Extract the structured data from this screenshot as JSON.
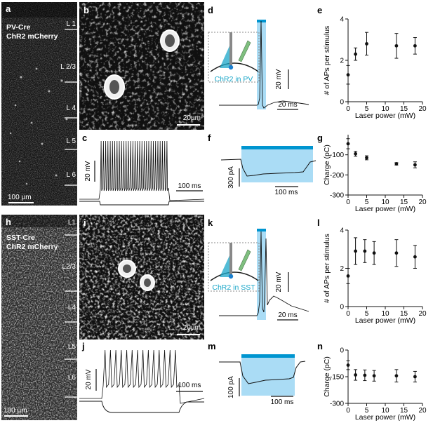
{
  "panels": {
    "a": {
      "letter": "a",
      "line1": "PV-Cre",
      "line2": "ChR2 mCherry",
      "scale": "100 µm",
      "layers": [
        "L 1",
        "L 2/3",
        "L 4",
        "L 5",
        "L 6"
      ]
    },
    "b": {
      "letter": "b",
      "scale": "20µm"
    },
    "c": {
      "letter": "c",
      "ybar": "20 mV",
      "xbar": "100 ms"
    },
    "d": {
      "letter": "d",
      "inset": "ChR2 in PV",
      "ybar": "20 mV",
      "xbar": "20 ms"
    },
    "f": {
      "letter": "f",
      "ybar": "300 pA",
      "xbar": "100 ms"
    },
    "h": {
      "letter": "h",
      "line1": "SST-Cre",
      "line2": "ChR2 mCherry",
      "scale": "100 µm",
      "layers": [
        "L1",
        "L2/3",
        "L4",
        "L5",
        "L6"
      ]
    },
    "i": {
      "letter": "i",
      "scale": "20µm"
    },
    "j": {
      "letter": "j",
      "ybar": "20 mV",
      "xbar": "100 ms"
    },
    "k": {
      "letter": "k",
      "inset": "ChR2 in SST",
      "ybar": "20 mV",
      "xbar": "20 ms"
    },
    "m": {
      "letter": "m",
      "ybar": "100 pA",
      "xbar": "100 ms"
    }
  },
  "colors": {
    "laser": "#0095d0",
    "laserFill": "#aadcf5",
    "inset": "#19a6c8",
    "electrode": "#7fbf7f"
  },
  "chart_data": [
    {
      "id": "e",
      "letter": "e",
      "type": "scatter",
      "xlabel": "Laser power (mW)",
      "ylabel": "# of APs per stimulus",
      "xlim": [
        0,
        20
      ],
      "ylim": [
        0,
        4
      ],
      "xticks": [
        0,
        5,
        10,
        15,
        20
      ],
      "yticks": [
        0,
        2,
        4
      ],
      "x": [
        0,
        2,
        5,
        13,
        18
      ],
      "y": [
        1.3,
        2.3,
        2.8,
        2.7,
        2.7
      ],
      "err": [
        0.45,
        0.3,
        0.55,
        0.6,
        0.4
      ]
    },
    {
      "id": "g",
      "letter": "g",
      "type": "scatter",
      "xlabel": "Laser power (mW)",
      "ylabel": "Charge (pC)",
      "xlim": [
        0,
        20
      ],
      "ylim": [
        -300,
        0
      ],
      "xticks": [
        0,
        5,
        10,
        15,
        20
      ],
      "yticks": [
        -300,
        -200,
        -100
      ],
      "x": [
        0,
        2,
        5,
        13,
        18
      ],
      "y": [
        -45,
        -95,
        -115,
        -145,
        -150
      ],
      "err": [
        25,
        12,
        10,
        6,
        15
      ]
    },
    {
      "id": "l",
      "letter": "l",
      "type": "scatter",
      "xlabel": "Laser power (mW)",
      "ylabel": "# of APs per stimulus",
      "xlim": [
        0,
        20
      ],
      "ylim": [
        0,
        4
      ],
      "xticks": [
        0,
        5,
        10,
        15,
        20
      ],
      "yticks": [
        0,
        2,
        4
      ],
      "x": [
        0,
        2,
        4.5,
        7,
        13,
        18
      ],
      "y": [
        1.6,
        2.9,
        2.9,
        2.8,
        2.8,
        2.6
      ],
      "err": [
        0.4,
        0.7,
        0.6,
        0.6,
        0.7,
        0.6
      ]
    },
    {
      "id": "n",
      "letter": "n",
      "type": "scatter",
      "xlabel": "Laser power (mW)",
      "ylabel": "Charge (pC)",
      "xlim": [
        0,
        20
      ],
      "ylim": [
        -300,
        0
      ],
      "xticks": [
        0,
        5,
        10,
        15,
        20
      ],
      "yticks": [
        -300,
        -150,
        0
      ],
      "x": [
        0,
        2,
        4.5,
        7,
        13,
        18
      ],
      "y": [
        -85,
        -140,
        -142,
        -145,
        -145,
        -150
      ],
      "err": [
        25,
        30,
        30,
        30,
        35,
        30
      ]
    }
  ]
}
